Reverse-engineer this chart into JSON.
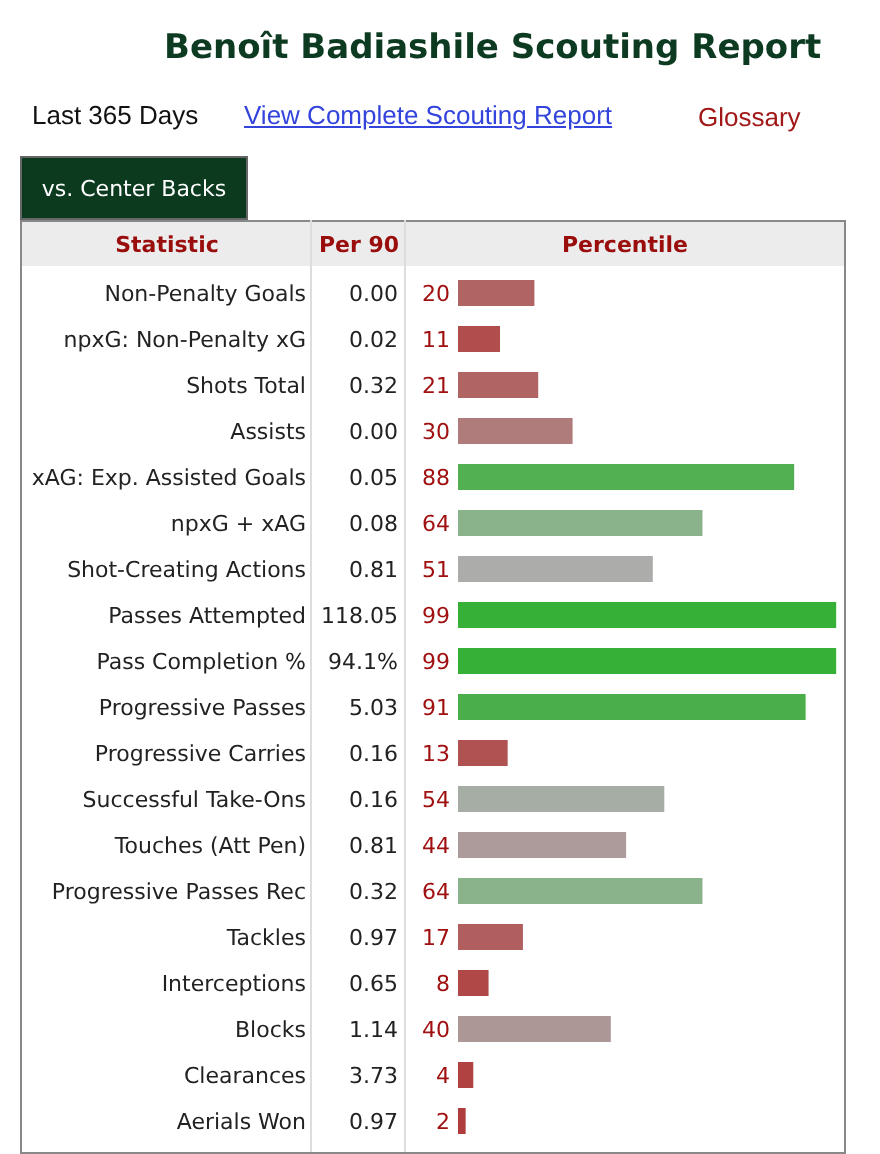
{
  "chart_data": {
    "type": "bar",
    "orientation": "horizontal",
    "title": "Benoît Badiashile Scouting Report",
    "subtitle": "Last 365 Days",
    "ylabel": "Statistic",
    "xlabel": "Percentile",
    "annotations": [
      "View Complete Scouting Report",
      "Glossary",
      "vs. Center Backs",
      "Per 90",
      "0.00",
      "0.02",
      "0.32",
      "0.00",
      "0.05",
      "0.08",
      "0.81",
      "118.05",
      "94.1%",
      "5.03",
      "0.16",
      "0.16",
      "0.81",
      "0.32",
      "0.97",
      "0.65",
      "1.14",
      "3.73",
      "0.97"
    ],
    "categories": [
      "Non-Penalty Goals",
      "npxG: Non-Penalty xG",
      "Shots Total",
      "Assists",
      "xAG: Exp. Assisted Goals",
      "npxG + xAG",
      "Shot-Creating Actions",
      "Passes Attempted",
      "Pass Completion %",
      "Progressive Passes",
      "Progressive Carries",
      "Successful Take-Ons",
      "Touches (Att Pen)",
      "Progressive Passes Rec",
      "Tackles",
      "Interceptions",
      "Blocks",
      "Clearances",
      "Aerials Won"
    ],
    "values": [
      20,
      11,
      21,
      30,
      88,
      64,
      51,
      99,
      99,
      91,
      13,
      54,
      44,
      64,
      17,
      8,
      40,
      4,
      2
    ],
    "colors": [
      "#b06464",
      "#b04d4d",
      "#b06464",
      "#b07b7b",
      "#52b052",
      "#8bb38b",
      "#acadab",
      "#36b036",
      "#36b036",
      "#4aae4a",
      "#b05252",
      "#a5ada5",
      "#ad9b9b",
      "#8bb38b",
      "#b05e5e",
      "#b04848",
      "#ad9696",
      "#b04242",
      "#b03d3d"
    ],
    "xlim": [
      0,
      100
    ],
    "data_labels": true
  }
}
